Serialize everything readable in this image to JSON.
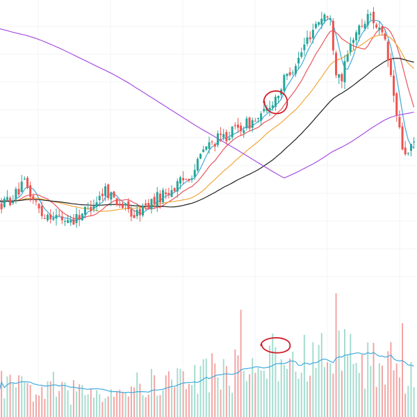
{
  "colors": {
    "background": "#ffffff",
    "grid": "#f0f3f6",
    "up": "#26a69a",
    "down": "#ef5350",
    "volume_up": "#a5dccf",
    "volume_down": "#f2a5a4",
    "ma_fast": "#3fa9dc",
    "ma_mid": "#e8545c",
    "ma_slow": "#f2a63a",
    "ma_long": "#1d1d1d",
    "ma_longest": "#a64ee0",
    "volume_ma": "#3fa9dc",
    "annotation": "#d0202a"
  },
  "chart_data": {
    "type": "candlestick",
    "title": "",
    "xlabel": "",
    "ylabel": "",
    "grid": true,
    "legend": "none",
    "panes": [
      "price",
      "volume"
    ],
    "x_axis_labels": [],
    "y_axis_labels": [],
    "price_waypoints": [
      [
        0,
        30
      ],
      [
        5,
        34
      ],
      [
        9,
        42
      ],
      [
        12,
        33
      ],
      [
        15,
        25
      ],
      [
        18,
        25
      ],
      [
        22,
        22
      ],
      [
        26,
        22
      ],
      [
        30,
        27
      ],
      [
        34,
        33
      ],
      [
        37,
        39
      ],
      [
        40,
        34
      ],
      [
        44,
        28
      ],
      [
        47,
        24
      ],
      [
        50,
        28
      ],
      [
        54,
        33
      ],
      [
        58,
        37
      ],
      [
        62,
        41
      ],
      [
        65,
        45
      ],
      [
        68,
        50
      ],
      [
        71,
        61
      ],
      [
        75,
        66
      ],
      [
        79,
        69
      ],
      [
        83,
        73
      ],
      [
        87,
        76
      ],
      [
        91,
        79
      ],
      [
        94,
        86
      ],
      [
        97,
        93
      ],
      [
        100,
        103
      ],
      [
        104,
        112
      ],
      [
        107,
        123
      ],
      [
        110,
        132
      ],
      [
        113,
        137
      ],
      [
        115,
        133
      ],
      [
        117,
        106
      ],
      [
        119,
        102
      ],
      [
        121,
        113
      ],
      [
        123,
        125
      ],
      [
        126,
        131
      ],
      [
        129,
        137
      ],
      [
        132,
        128
      ],
      [
        134,
        120
      ],
      [
        136,
        102
      ],
      [
        138,
        80
      ],
      [
        140,
        62
      ],
      [
        142,
        58
      ],
      [
        145,
        68
      ]
    ],
    "volume_waypoints": [
      [
        0,
        40
      ],
      [
        20,
        30
      ],
      [
        40,
        35
      ],
      [
        60,
        45
      ],
      [
        70,
        55
      ],
      [
        80,
        60
      ],
      [
        95,
        65
      ],
      [
        105,
        70
      ],
      [
        117,
        80
      ],
      [
        125,
        72
      ],
      [
        135,
        65
      ],
      [
        145,
        55
      ]
    ],
    "moving_averages": [
      {
        "color_key": "ma_fast",
        "period": 5,
        "source": "close"
      },
      {
        "color_key": "ma_mid",
        "period": 12,
        "source": "close"
      },
      {
        "color_key": "ma_slow",
        "period": 26,
        "source": "close"
      },
      {
        "color_key": "ma_long",
        "period": 50,
        "source": "close"
      },
      {
        "color_key": "ma_longest",
        "period": 100,
        "source": "close",
        "seed_from": 190,
        "seed_trend": -1.2
      }
    ],
    "price_range": [
      0,
      145
    ],
    "volume_range": [
      0,
      150
    ],
    "annotations": [
      {
        "shape": "ellipse",
        "pane": "price",
        "index": 96
      },
      {
        "shape": "ellipse",
        "pane": "volume",
        "index": 96
      }
    ]
  }
}
